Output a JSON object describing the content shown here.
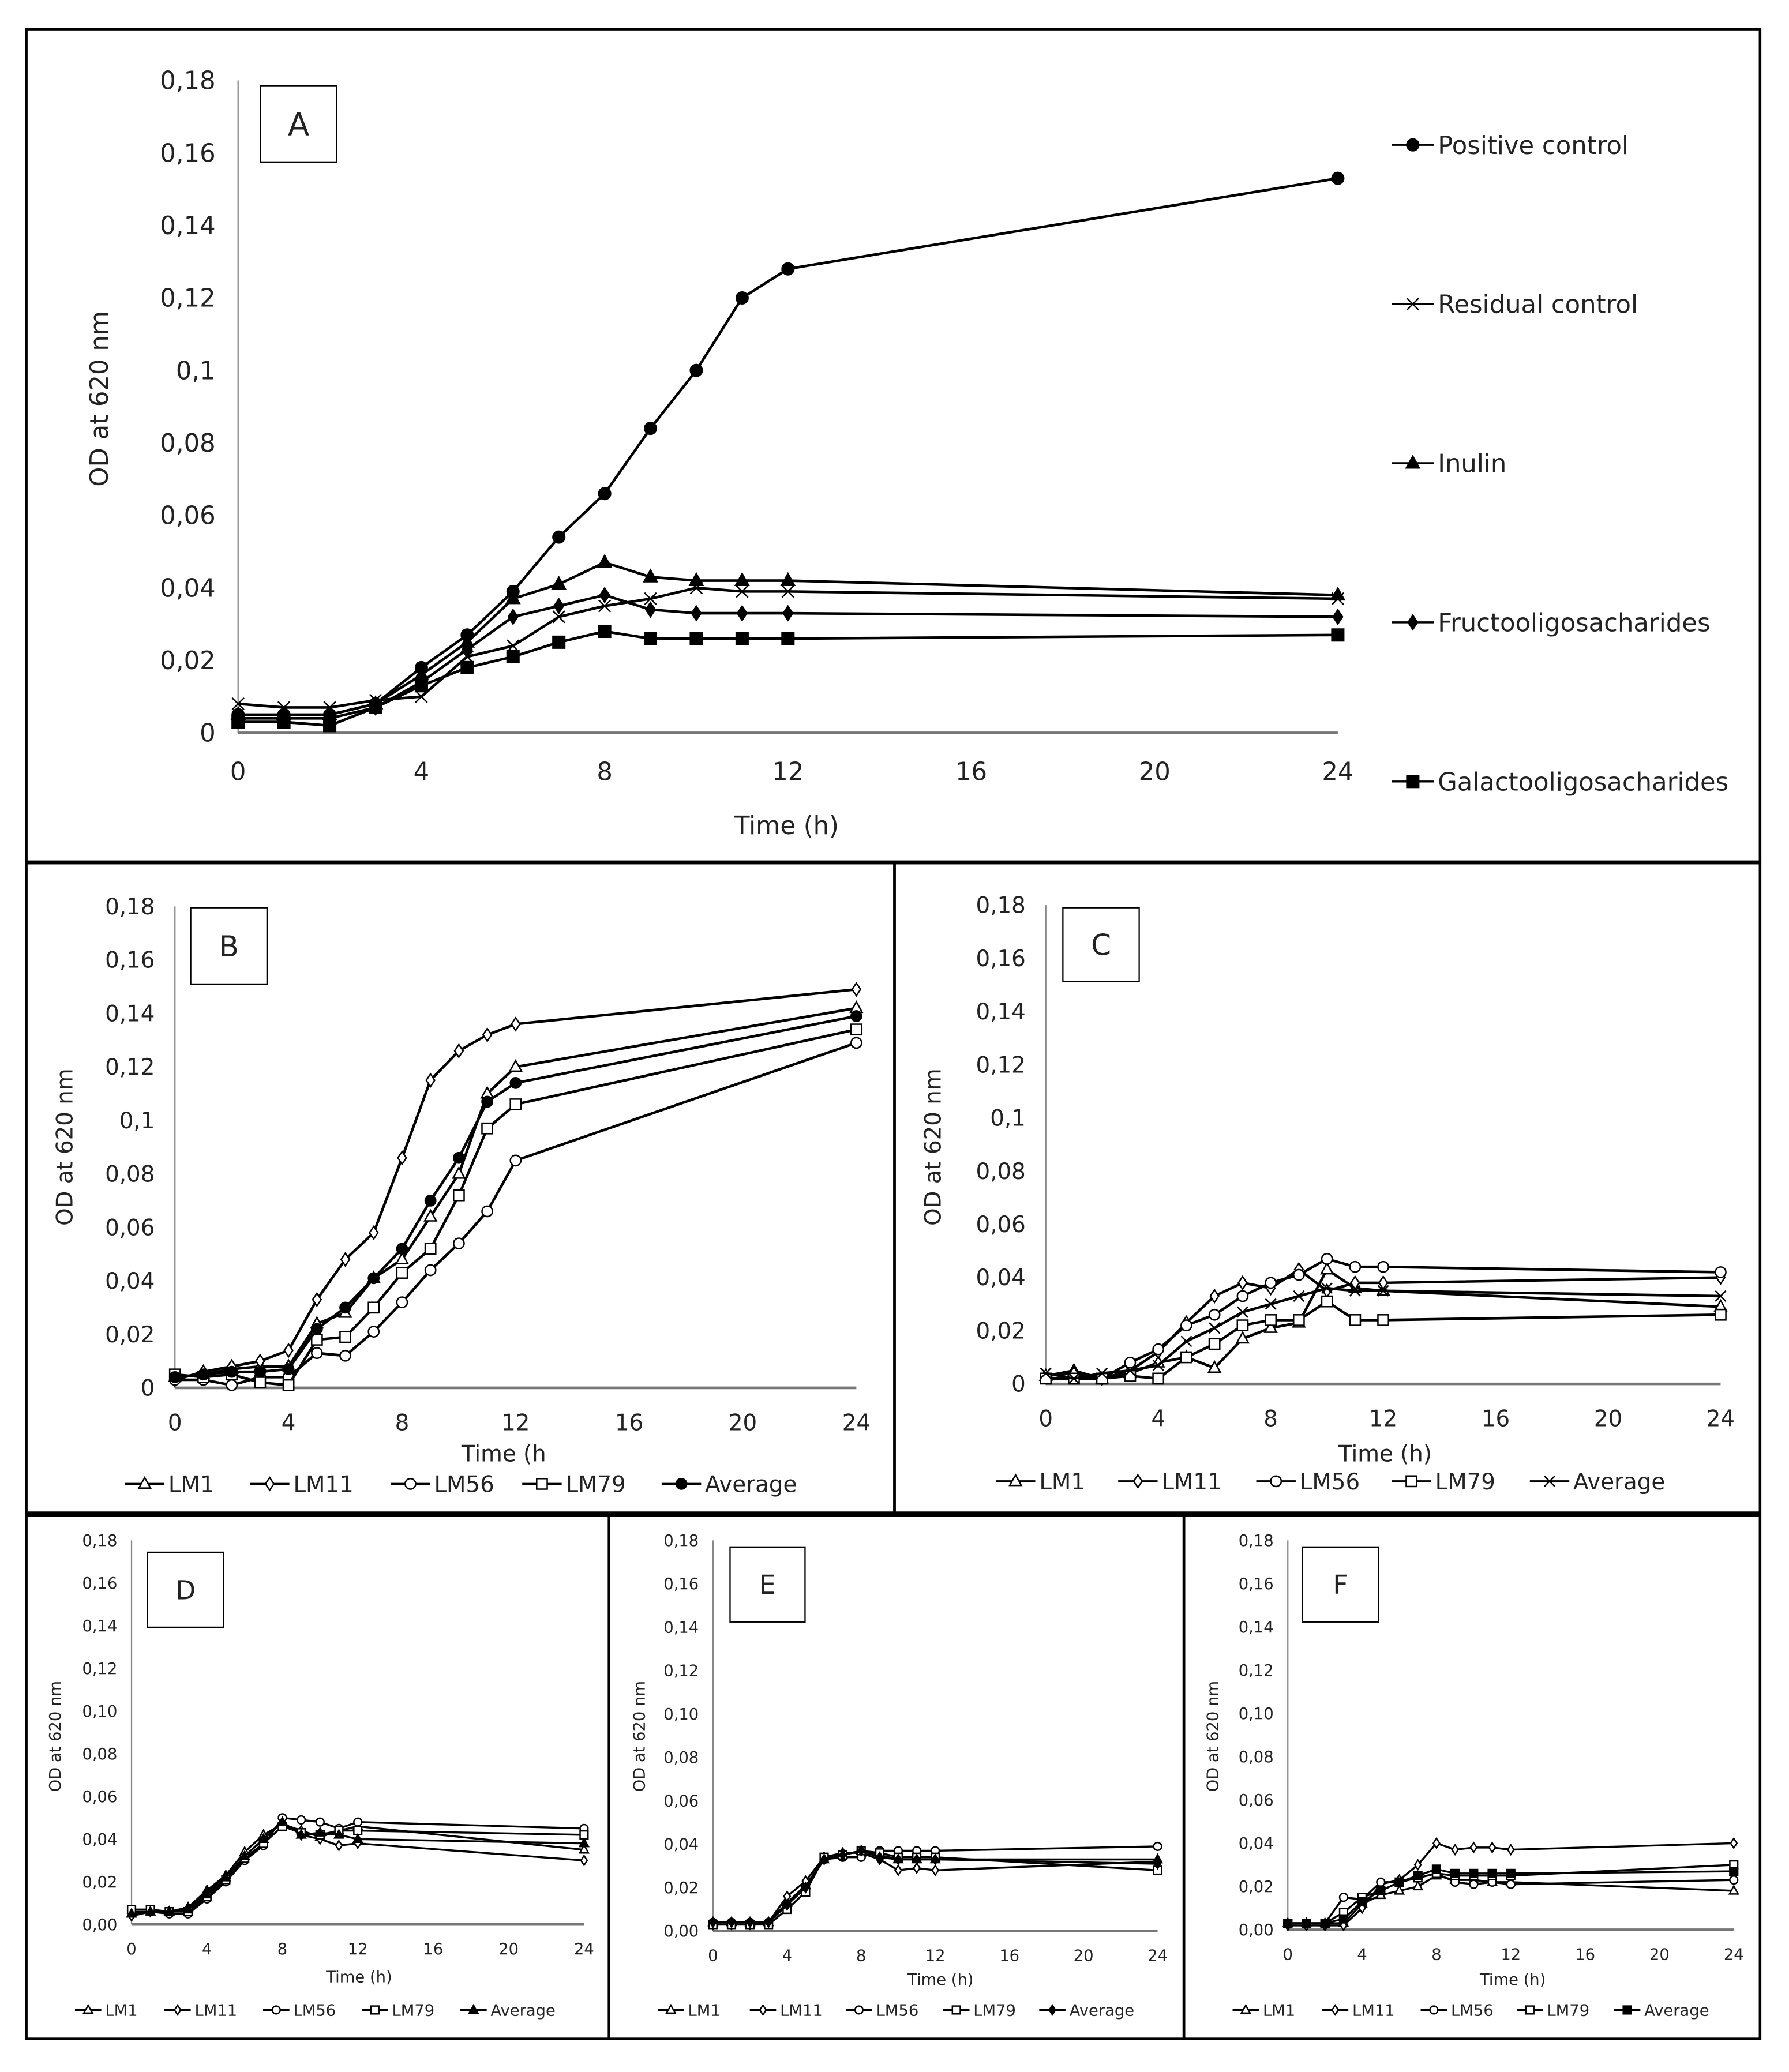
{
  "chart_data": [
    {
      "panel": "A",
      "type": "line",
      "xlabel": "Time (h)",
      "ylabel": "OD at 620 nm",
      "xlim": [
        0,
        24
      ],
      "ylim": [
        0,
        0.18
      ],
      "xticks": [
        "0",
        "4",
        "8",
        "12",
        "16",
        "20",
        "24"
      ],
      "yticks": [
        "0",
        "0,02",
        "0,04",
        "0,06",
        "0,08",
        "0,1",
        "0,12",
        "0,14",
        "0,16",
        "0,18"
      ],
      "legend_position": "right",
      "x": [
        0,
        1,
        2,
        3,
        4,
        5,
        6,
        7,
        8,
        9,
        10,
        11,
        12,
        24
      ],
      "series": [
        {
          "name": "Positive control",
          "marker": "circle",
          "filled": true,
          "values": [
            0.005,
            0.005,
            0.005,
            0.008,
            0.018,
            0.027,
            0.039,
            0.054,
            0.066,
            0.084,
            0.1,
            0.12,
            0.128,
            0.153
          ]
        },
        {
          "name": "Residual control",
          "marker": "x",
          "filled": false,
          "values": [
            0.008,
            0.007,
            0.007,
            0.009,
            0.01,
            0.021,
            0.024,
            0.032,
            0.035,
            0.037,
            0.04,
            0.039,
            0.039,
            0.037
          ]
        },
        {
          "name": "Inulin",
          "marker": "triangle",
          "filled": true,
          "values": [
            0.005,
            0.005,
            0.005,
            0.008,
            0.016,
            0.025,
            0.037,
            0.041,
            0.047,
            0.043,
            0.042,
            0.042,
            0.042,
            0.038
          ]
        },
        {
          "name": "Fructooligosacharides",
          "marker": "diamond",
          "filled": true,
          "values": [
            0.004,
            0.004,
            0.004,
            0.007,
            0.014,
            0.023,
            0.032,
            0.035,
            0.038,
            0.034,
            0.033,
            0.033,
            0.033,
            0.032
          ]
        },
        {
          "name": "Galactooligosacharides",
          "marker": "square",
          "filled": true,
          "values": [
            0.003,
            0.003,
            0.002,
            0.007,
            0.013,
            0.018,
            0.021,
            0.025,
            0.028,
            0.026,
            0.026,
            0.026,
            0.026,
            0.027
          ]
        }
      ]
    },
    {
      "panel": "B",
      "type": "line",
      "xlabel": "Time (h",
      "ylabel": "OD at 620 nm",
      "xlim": [
        0,
        24
      ],
      "ylim": [
        0,
        0.18
      ],
      "xticks": [
        "0",
        "4",
        "8",
        "12",
        "16",
        "20",
        "24"
      ],
      "yticks": [
        "0",
        "0,02",
        "0,04",
        "0,06",
        "0,08",
        "0,1",
        "0,12",
        "0,14",
        "0,16",
        "0,18"
      ],
      "legend_position": "bottom",
      "x": [
        0,
        1,
        2,
        3,
        4,
        5,
        6,
        7,
        8,
        9,
        10,
        11,
        12,
        24
      ],
      "series": [
        {
          "name": "LM1",
          "marker": "triangle",
          "filled": false,
          "values": [
            0.004,
            0.005,
            0.007,
            0.008,
            0.008,
            0.024,
            0.028,
            0.041,
            0.048,
            0.064,
            0.08,
            0.11,
            0.12,
            0.142
          ]
        },
        {
          "name": "LM11",
          "marker": "diamond",
          "filled": false,
          "values": [
            0.003,
            0.006,
            0.008,
            0.01,
            0.014,
            0.033,
            0.048,
            0.058,
            0.086,
            0.115,
            0.126,
            0.132,
            0.136,
            0.149
          ]
        },
        {
          "name": "LM56",
          "marker": "circle",
          "filled": false,
          "values": [
            0.003,
            0.003,
            0.001,
            0.004,
            0.004,
            0.013,
            0.012,
            0.021,
            0.032,
            0.044,
            0.054,
            0.066,
            0.085,
            0.129
          ]
        },
        {
          "name": "LM79",
          "marker": "square",
          "filled": false,
          "values": [
            0.005,
            0.004,
            0.005,
            0.002,
            0.001,
            0.018,
            0.019,
            0.03,
            0.043,
            0.052,
            0.072,
            0.097,
            0.106,
            0.134
          ]
        },
        {
          "name": "Average",
          "marker": "circle",
          "filled": true,
          "values": [
            0.004,
            0.005,
            0.006,
            0.006,
            0.007,
            0.022,
            0.03,
            0.041,
            0.052,
            0.07,
            0.086,
            0.107,
            0.114,
            0.139
          ]
        }
      ]
    },
    {
      "panel": "C",
      "type": "line",
      "xlabel": "Time (h)",
      "ylabel": "OD at 620 nm",
      "xlim": [
        0,
        24
      ],
      "ylim": [
        0,
        0.18
      ],
      "xticks": [
        "0",
        "4",
        "8",
        "12",
        "16",
        "20",
        "24"
      ],
      "yticks": [
        "0",
        "0,02",
        "0,04",
        "0,06",
        "0,08",
        "0,1",
        "0,12",
        "0,14",
        "0,16",
        "0,18"
      ],
      "legend_position": "bottom",
      "x": [
        0,
        1,
        2,
        3,
        4,
        5,
        6,
        7,
        8,
        9,
        10,
        11,
        12,
        24
      ],
      "series": [
        {
          "name": "LM1",
          "marker": "triangle",
          "filled": false,
          "values": [
            0.003,
            0.005,
            0.002,
            0.004,
            0.008,
            0.01,
            0.006,
            0.017,
            0.021,
            0.023,
            0.043,
            0.036,
            0.035,
            0.029
          ]
        },
        {
          "name": "LM11",
          "marker": "diamond",
          "filled": false,
          "values": [
            0.003,
            0.004,
            0.002,
            0.005,
            0.012,
            0.023,
            0.033,
            0.038,
            0.036,
            0.043,
            0.035,
            0.038,
            0.038,
            0.04
          ]
        },
        {
          "name": "LM56",
          "marker": "circle",
          "filled": false,
          "values": [
            0.002,
            0.002,
            0.002,
            0.008,
            0.013,
            0.022,
            0.026,
            0.033,
            0.038,
            0.041,
            0.047,
            0.044,
            0.044,
            0.042
          ]
        },
        {
          "name": "LM79",
          "marker": "square",
          "filled": false,
          "values": [
            0.002,
            0.002,
            0.002,
            0.003,
            0.002,
            0.01,
            0.015,
            0.022,
            0.024,
            0.024,
            0.031,
            0.024,
            0.024,
            0.026
          ]
        },
        {
          "name": "Average",
          "marker": "x",
          "filled": false,
          "values": [
            0.004,
            0.002,
            0.004,
            0.005,
            0.007,
            0.016,
            0.021,
            0.027,
            0.03,
            0.033,
            0.036,
            0.035,
            0.035,
            0.033
          ]
        }
      ]
    },
    {
      "panel": "D",
      "type": "line",
      "xlabel": "Time (h)",
      "ylabel": "OD at 620 nm",
      "xlim": [
        0,
        24
      ],
      "ylim": [
        0,
        0.18
      ],
      "xticks": [
        "0",
        "4",
        "8",
        "12",
        "16",
        "20",
        "24"
      ],
      "yticks": [
        "0,00",
        "0,02",
        "0,04",
        "0,06",
        "0,08",
        "0,10",
        "0,12",
        "0,14",
        "0,16",
        "0,18"
      ],
      "legend_position": "bottom",
      "x": [
        0,
        1,
        2,
        3,
        4,
        5,
        6,
        7,
        8,
        9,
        10,
        11,
        12,
        24
      ],
      "series": [
        {
          "name": "LM1",
          "marker": "triangle",
          "filled": false,
          "values": [
            0.005,
            0.006,
            0.006,
            0.008,
            0.016,
            0.023,
            0.034,
            0.042,
            0.047,
            0.044,
            0.041,
            0.044,
            0.046,
            0.035
          ]
        },
        {
          "name": "LM11",
          "marker": "diamond",
          "filled": false,
          "values": [
            0.004,
            0.006,
            0.006,
            0.007,
            0.015,
            0.022,
            0.032,
            0.04,
            0.048,
            0.042,
            0.04,
            0.037,
            0.038,
            0.03
          ]
        },
        {
          "name": "LM56",
          "marker": "circle",
          "filled": false,
          "values": [
            0.006,
            0.006,
            0.005,
            0.005,
            0.012,
            0.02,
            0.03,
            0.037,
            0.05,
            0.049,
            0.048,
            0.045,
            0.048,
            0.045
          ]
        },
        {
          "name": "LM79",
          "marker": "square",
          "filled": false,
          "values": [
            0.007,
            0.007,
            0.006,
            0.006,
            0.013,
            0.021,
            0.031,
            0.038,
            0.046,
            0.043,
            0.042,
            0.044,
            0.044,
            0.042
          ]
        },
        {
          "name": "Average",
          "marker": "triangle",
          "filled": true,
          "values": [
            0.005,
            0.006,
            0.006,
            0.007,
            0.014,
            0.022,
            0.032,
            0.04,
            0.048,
            0.042,
            0.043,
            0.042,
            0.04,
            0.038
          ]
        }
      ]
    },
    {
      "panel": "E",
      "type": "line",
      "xlabel": "Time (h)",
      "ylabel": "OD at 620 nm",
      "xlim": [
        0,
        24
      ],
      "ylim": [
        0,
        0.18
      ],
      "xticks": [
        "0",
        "4",
        "8",
        "12",
        "16",
        "20",
        "24"
      ],
      "yticks": [
        "0,00",
        "0,02",
        "0,04",
        "0,06",
        "0,08",
        "0,10",
        "0,12",
        "0,14",
        "0,16",
        "0,18"
      ],
      "legend_position": "bottom",
      "x": [
        0,
        1,
        2,
        3,
        4,
        5,
        6,
        7,
        8,
        9,
        10,
        11,
        12,
        24
      ],
      "series": [
        {
          "name": "LM1",
          "marker": "triangle",
          "filled": false,
          "values": [
            0.004,
            0.004,
            0.004,
            0.004,
            0.013,
            0.021,
            0.033,
            0.035,
            0.037,
            0.035,
            0.033,
            0.033,
            0.033,
            0.033
          ]
        },
        {
          "name": "LM11",
          "marker": "diamond",
          "filled": false,
          "values": [
            0.003,
            0.003,
            0.003,
            0.004,
            0.016,
            0.023,
            0.034,
            0.036,
            0.036,
            0.033,
            0.028,
            0.029,
            0.028,
            0.032
          ]
        },
        {
          "name": "LM56",
          "marker": "circle",
          "filled": false,
          "values": [
            0.004,
            0.004,
            0.004,
            0.004,
            0.012,
            0.02,
            0.033,
            0.034,
            0.034,
            0.037,
            0.037,
            0.037,
            0.037,
            0.039
          ]
        },
        {
          "name": "LM79",
          "marker": "square",
          "filled": false,
          "values": [
            0.003,
            0.003,
            0.003,
            0.003,
            0.01,
            0.018,
            0.034,
            0.035,
            0.037,
            0.036,
            0.034,
            0.034,
            0.034,
            0.028
          ]
        },
        {
          "name": "Average",
          "marker": "diamond",
          "filled": true,
          "values": [
            0.004,
            0.004,
            0.004,
            0.004,
            0.012,
            0.02,
            0.033,
            0.035,
            0.037,
            0.034,
            0.033,
            0.033,
            0.033,
            0.031
          ]
        }
      ]
    },
    {
      "panel": "F",
      "type": "line",
      "xlabel": "Time (h)",
      "ylabel": "OD at 620 nm",
      "xlim": [
        0,
        24
      ],
      "ylim": [
        0,
        0.18
      ],
      "xticks": [
        "0",
        "4",
        "8",
        "12",
        "16",
        "20",
        "24"
      ],
      "yticks": [
        "0,00",
        "0,02",
        "0,04",
        "0,06",
        "0,08",
        "0,10",
        "0,12",
        "0,14",
        "0,16",
        "0,18"
      ],
      "legend_position": "bottom",
      "x": [
        0,
        1,
        2,
        3,
        4,
        5,
        6,
        7,
        8,
        9,
        10,
        11,
        12,
        24
      ],
      "series": [
        {
          "name": "LM1",
          "marker": "triangle",
          "filled": false,
          "values": [
            0.003,
            0.003,
            0.003,
            0.003,
            0.012,
            0.016,
            0.018,
            0.02,
            0.025,
            0.023,
            0.023,
            0.022,
            0.022,
            0.018
          ]
        },
        {
          "name": "LM11",
          "marker": "diamond",
          "filled": false,
          "values": [
            0.002,
            0.002,
            0.002,
            0.002,
            0.01,
            0.021,
            0.023,
            0.03,
            0.04,
            0.037,
            0.038,
            0.038,
            0.037,
            0.04
          ]
        },
        {
          "name": "LM56",
          "marker": "circle",
          "filled": false,
          "values": [
            0.003,
            0.003,
            0.003,
            0.015,
            0.014,
            0.022,
            0.022,
            0.024,
            0.026,
            0.022,
            0.021,
            0.022,
            0.021,
            0.023
          ]
        },
        {
          "name": "LM79",
          "marker": "square",
          "filled": false,
          "values": [
            0.003,
            0.003,
            0.003,
            0.008,
            0.015,
            0.018,
            0.022,
            0.024,
            0.026,
            0.025,
            0.025,
            0.025,
            0.025,
            0.03
          ]
        },
        {
          "name": "Average",
          "marker": "square",
          "filled": true,
          "values": [
            0.003,
            0.003,
            0.003,
            0.005,
            0.013,
            0.018,
            0.022,
            0.025,
            0.028,
            0.026,
            0.026,
            0.026,
            0.026,
            0.027
          ]
        }
      ]
    }
  ]
}
